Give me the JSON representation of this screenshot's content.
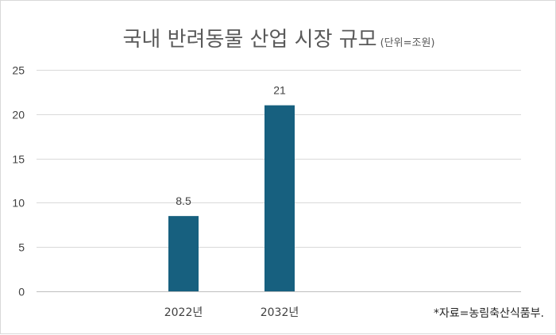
{
  "chart_data": {
    "type": "bar",
    "title": "국내 반려동물 산업 시장 규모",
    "subtitle": "(단위=조원)",
    "categories": [
      "2022년",
      "2032년"
    ],
    "values": [
      8.5,
      21
    ],
    "data_labels": [
      "8.5",
      "21"
    ],
    "ylim": [
      0,
      25
    ],
    "yticks": [
      0,
      5,
      10,
      15,
      20,
      25
    ],
    "grid": true,
    "bar_color": "#17607f",
    "source": "*자료=농림축산식품부."
  }
}
